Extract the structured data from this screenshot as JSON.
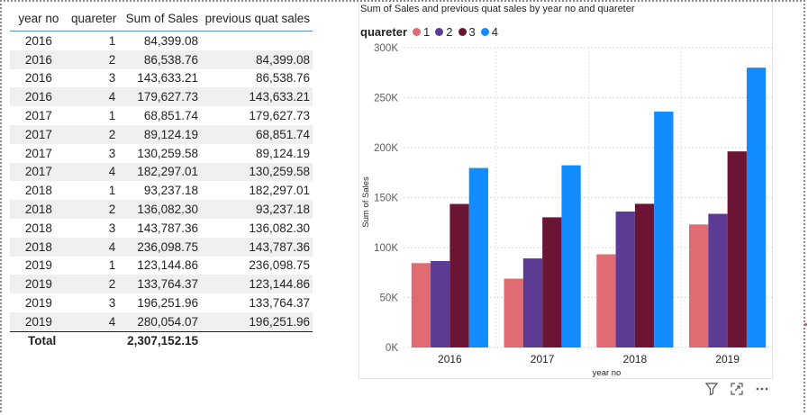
{
  "table": {
    "headers": [
      "year no",
      "quareter",
      "Sum of Sales",
      "previous quat sales"
    ],
    "rows": [
      [
        "2016",
        "1",
        "84,399.08",
        ""
      ],
      [
        "2016",
        "2",
        "86,538.76",
        "84,399.08"
      ],
      [
        "2016",
        "3",
        "143,633.21",
        "86,538.76"
      ],
      [
        "2016",
        "4",
        "179,627.73",
        "143,633.21"
      ],
      [
        "2017",
        "1",
        "68,851.74",
        "179,627.73"
      ],
      [
        "2017",
        "2",
        "89,124.19",
        "68,851.74"
      ],
      [
        "2017",
        "3",
        "130,259.58",
        "89,124.19"
      ],
      [
        "2017",
        "4",
        "182,297.01",
        "130,259.58"
      ],
      [
        "2018",
        "1",
        "93,237.18",
        "182,297.01"
      ],
      [
        "2018",
        "2",
        "136,082.30",
        "93,237.18"
      ],
      [
        "2018",
        "3",
        "143,787.36",
        "136,082.30"
      ],
      [
        "2018",
        "4",
        "236,098.75",
        "143,787.36"
      ],
      [
        "2019",
        "1",
        "123,144.86",
        "236,098.75"
      ],
      [
        "2019",
        "2",
        "133,764.37",
        "123,144.86"
      ],
      [
        "2019",
        "3",
        "196,251.96",
        "133,764.37"
      ],
      [
        "2019",
        "4",
        "280,054.07",
        "196,251.96"
      ]
    ],
    "total_label": "Total",
    "total_value": "2,307,152.15"
  },
  "chart_data": {
    "type": "bar",
    "title": "Sum of Sales and previous quat sales by year no and quareter",
    "legend_title": "quareter",
    "legend_placement": "top-left",
    "xlabel": "year no",
    "ylabel": "Sum of Sales",
    "categories": [
      "2016",
      "2017",
      "2018",
      "2019"
    ],
    "ylim": [
      0,
      300000
    ],
    "yticks": [
      0,
      50000,
      100000,
      150000,
      200000,
      250000,
      300000
    ],
    "ytick_labels": [
      "0K",
      "50K",
      "100K",
      "150K",
      "200K",
      "250K",
      "300K"
    ],
    "grid": true,
    "series": [
      {
        "name": "1",
        "color": "#e06b72",
        "values": [
          84399.08,
          68851.74,
          93237.18,
          123144.86
        ]
      },
      {
        "name": "2",
        "color": "#5b3b94",
        "values": [
          86538.76,
          89124.19,
          136082.3,
          133764.37
        ]
      },
      {
        "name": "3",
        "color": "#6b1433",
        "values": [
          143633.21,
          130259.58,
          143787.36,
          196251.96
        ]
      },
      {
        "name": "4",
        "color": "#118dff",
        "values": [
          179627.73,
          182297.01,
          236098.75,
          280054.07
        ]
      }
    ]
  },
  "toolbar": {
    "filter_icon": "filter-icon",
    "focus_icon": "focus-mode-icon",
    "more_icon": "more-options-icon"
  }
}
